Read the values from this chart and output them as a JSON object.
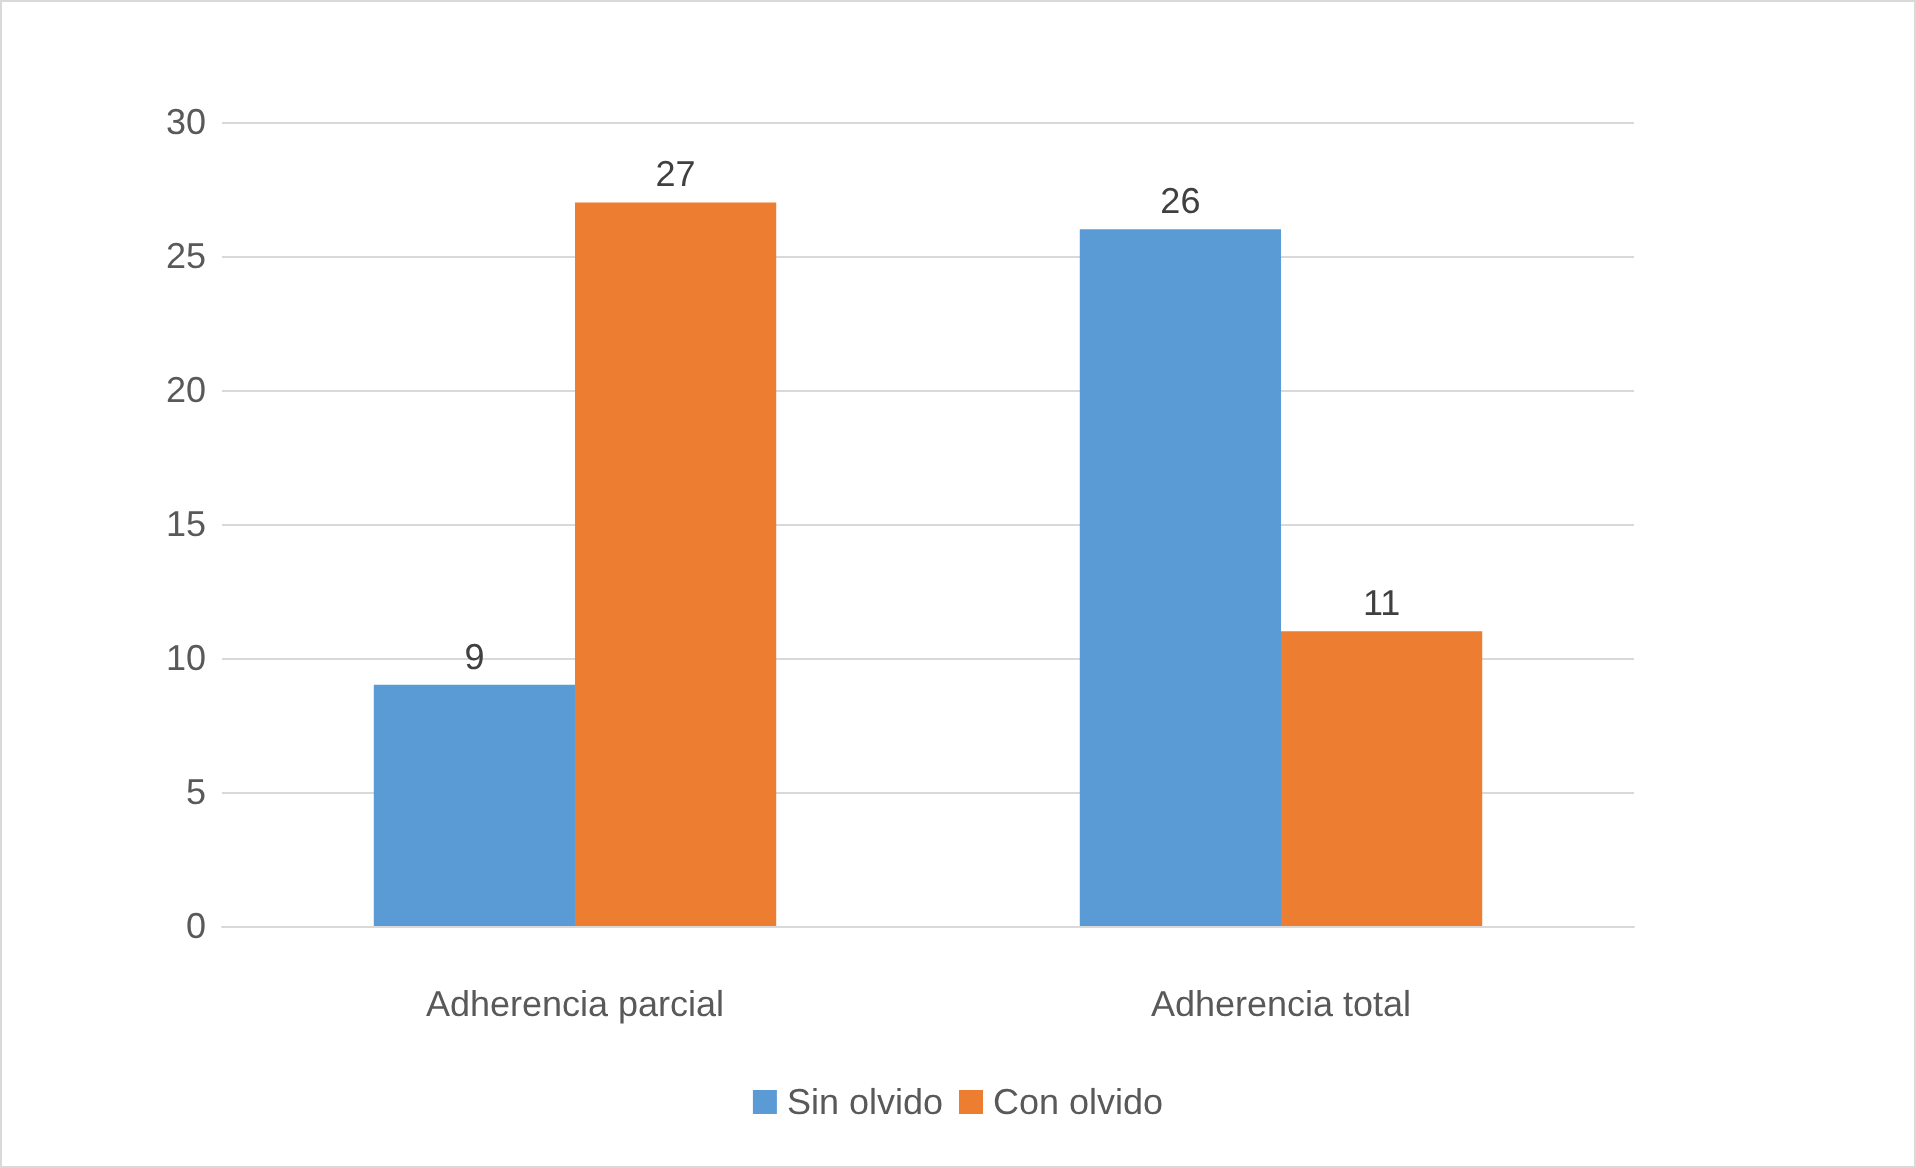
{
  "chart_data": {
    "type": "bar",
    "categories": [
      "Adherencia parcial",
      "Adherencia total"
    ],
    "series": [
      {
        "name": "Sin olvido",
        "color": "#5b9bd5",
        "values": [
          9,
          26
        ]
      },
      {
        "name": "Con olvido",
        "color": "#ed7d31",
        "values": [
          27,
          11
        ]
      }
    ],
    "ylim": [
      0,
      30
    ],
    "yticks": [
      0,
      5,
      10,
      15,
      20,
      25,
      30
    ],
    "grid": "y",
    "legend": "bottom",
    "data_labels": true
  }
}
